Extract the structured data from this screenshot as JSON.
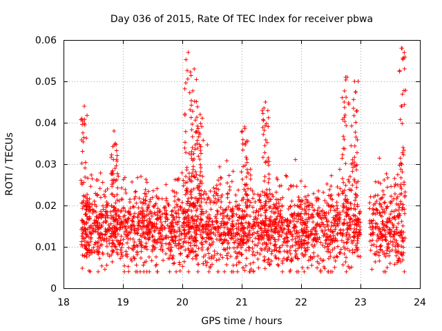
{
  "chart_data": {
    "type": "scatter",
    "title": "Day 036 of 2015, Rate Of TEC Index for receiver pbwa",
    "xlabel": "GPS time / hours",
    "ylabel": "ROTI / TECUs",
    "xlim": [
      18,
      24
    ],
    "ylim": [
      0,
      0.06
    ],
    "x_ticks": [
      18,
      19,
      20,
      21,
      22,
      23,
      24
    ],
    "x_tick_labels": [
      "18",
      "19",
      "20",
      "21",
      "22",
      "23",
      "24"
    ],
    "y_ticks": [
      0,
      0.01,
      0.02,
      0.03,
      0.04,
      0.05,
      0.06
    ],
    "y_tick_labels": [
      "0",
      "0.01",
      "0.02",
      "0.03",
      "0.04",
      "0.05",
      "0.06"
    ],
    "grid": true,
    "marker": "+",
    "color": "#ff0000",
    "data_range_x": [
      18.3,
      23.75
    ],
    "data_gap_x": [
      23.0,
      23.15
    ],
    "typical_y": 0.014,
    "spikes": [
      {
        "x": 18.35,
        "y": 0.044
      },
      {
        "x": 18.85,
        "y": 0.038
      },
      {
        "x": 20.1,
        "y": 0.057
      },
      {
        "x": 20.2,
        "y": 0.053
      },
      {
        "x": 20.3,
        "y": 0.042
      },
      {
        "x": 21.05,
        "y": 0.039
      },
      {
        "x": 21.4,
        "y": 0.045
      },
      {
        "x": 22.75,
        "y": 0.051
      },
      {
        "x": 22.9,
        "y": 0.05
      },
      {
        "x": 23.7,
        "y": 0.058
      }
    ]
  }
}
